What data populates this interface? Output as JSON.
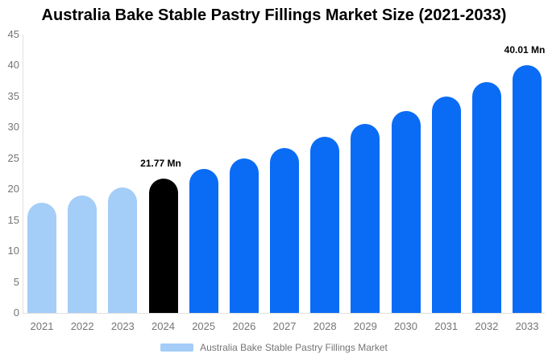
{
  "title": "Australia Bake Stable Pastry Fillings Market Size (2021-2033)",
  "legend": {
    "items": [
      {
        "label": "Australia Bake Stable Pastry Fillings Market",
        "color": "#a4cdf8"
      }
    ],
    "position": "bottom"
  },
  "colors": {
    "historical_bar": "#a4cdf8",
    "base_year_bar": "#000000",
    "forecast_bar": "#0a6cf5",
    "axis_text": "#757575",
    "title_text": "#000000",
    "axis_line": "#e0e0e0",
    "background": "#ffffff"
  },
  "chart_data": {
    "type": "bar",
    "title": "Australia Bake Stable Pastry Fillings Market Size (2021-2033)",
    "unit": "Mn",
    "categories": [
      "2021",
      "2022",
      "2023",
      "2024",
      "2025",
      "2026",
      "2027",
      "2028",
      "2029",
      "2030",
      "2031",
      "2032",
      "2033"
    ],
    "values": [
      17.77,
      19.02,
      20.35,
      21.77,
      23.29,
      24.92,
      26.67,
      28.53,
      30.53,
      32.66,
      34.95,
      37.39,
      40.01
    ],
    "bar_colors": [
      "#a4cdf8",
      "#a4cdf8",
      "#a4cdf8",
      "#000000",
      "#0a6cf5",
      "#0a6cf5",
      "#0a6cf5",
      "#0a6cf5",
      "#0a6cf5",
      "#0a6cf5",
      "#0a6cf5",
      "#0a6cf5",
      "#0a6cf5"
    ],
    "data_labels": [
      {
        "category": "2024",
        "text": "21.77 Mn"
      },
      {
        "category": "2033",
        "text": "40.01 Mn"
      }
    ],
    "xlabel": "",
    "ylabel": "",
    "ylim": [
      0,
      45
    ],
    "ytick_step": 5,
    "grid": false,
    "legend_position": "bottom"
  }
}
